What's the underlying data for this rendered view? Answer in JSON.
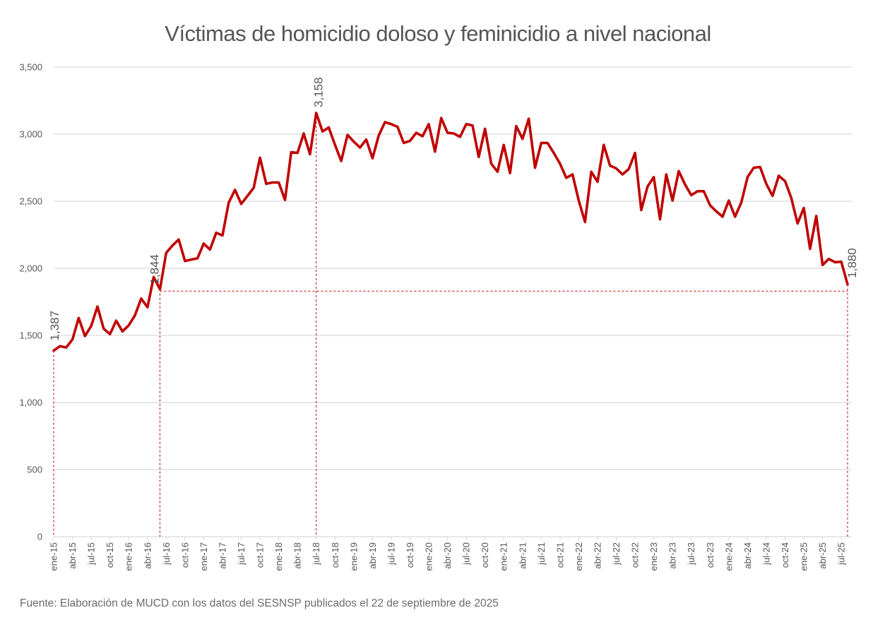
{
  "title": "Víctimas de homicidio doloso y feminicidio a nivel nacional",
  "source": "Fuente: Elaboración de MUCD con los datos del SESNSP publicados el 22 de septiembre de 2025",
  "colors": {
    "line": "#C00000",
    "grid": "#D9D9D9",
    "reference": "#C00000",
    "text": "#555555"
  },
  "chart_data": {
    "type": "line",
    "title": "Víctimas de homicidio doloso y feminicidio a nivel nacional",
    "xlabel": "",
    "ylabel": "",
    "ylim": [
      0,
      3500
    ],
    "yticks": [
      0,
      500,
      1000,
      1500,
      2000,
      2500,
      3000,
      3500
    ],
    "ytick_labels": [
      "0",
      "500",
      "1,000",
      "1,500",
      "2,000",
      "2,500",
      "3,000",
      "3,500"
    ],
    "grid": "horizontal",
    "legend": "none",
    "x_tick_labels": [
      "ene-15",
      "abr-15",
      "jul-15",
      "oct-15",
      "ene-16",
      "abr-16",
      "jul-16",
      "oct-16",
      "ene-17",
      "abr-17",
      "jul-17",
      "oct-17",
      "ene-18",
      "abr-18",
      "jul-18",
      "oct-18",
      "ene-19",
      "abr-19",
      "jul-19",
      "oct-19",
      "ene-20",
      "abr-20",
      "jul-20",
      "oct-20",
      "ene-21",
      "abr-21",
      "jul-21",
      "oct-21",
      "ene-22",
      "abr-22",
      "jul-22",
      "oct-22",
      "ene-23",
      "abr-23",
      "jul-23",
      "oct-23",
      "ene-24",
      "abr-24",
      "jul-24",
      "oct-24",
      "ene-25",
      "abr-25",
      "jul-25"
    ],
    "series": [
      {
        "values": [
          1387,
          1420,
          1410,
          1470,
          1630,
          1495,
          1570,
          1715,
          1550,
          1510,
          1610,
          1530,
          1575,
          1650,
          1775,
          1710,
          1935,
          1844,
          2115,
          2170,
          2215,
          2055,
          2065,
          2075,
          2185,
          2140,
          2265,
          2245,
          2490,
          2585,
          2480,
          2540,
          2600,
          2825,
          2630,
          2640,
          2640,
          2510,
          2865,
          2860,
          3005,
          2850,
          3158,
          3020,
          3050,
          2920,
          2800,
          2995,
          2945,
          2900,
          2960,
          2820,
          2990,
          3090,
          3075,
          3055,
          2935,
          2950,
          3010,
          2985,
          3075,
          2870,
          3120,
          3010,
          3005,
          2980,
          3075,
          3065,
          2830,
          3040,
          2780,
          2720,
          2920,
          2710,
          3060,
          2965,
          3115,
          2750,
          2935,
          2935,
          2860,
          2780,
          2675,
          2700,
          2505,
          2345,
          2720,
          2645,
          2920,
          2765,
          2745,
          2700,
          2740,
          2860,
          2435,
          2610,
          2680,
          2365,
          2700,
          2505,
          2725,
          2625,
          2545,
          2575,
          2575,
          2470,
          2425,
          2385,
          2505,
          2385,
          2490,
          2680,
          2750,
          2755,
          2630,
          2540,
          2690,
          2650,
          2525,
          2335,
          2450,
          2145,
          2390,
          2025,
          2070,
          2045,
          2050,
          1880
        ]
      }
    ],
    "annotations": [
      {
        "x": "ene-15",
        "value": 1387,
        "label": "1,387"
      },
      {
        "x": "jun-16",
        "value": 1844,
        "label": "1,844"
      },
      {
        "x": "jul-18",
        "value": 3158,
        "label": "3,158"
      },
      {
        "x": "ago-25",
        "value": 1880,
        "label": "1,880"
      }
    ]
  }
}
